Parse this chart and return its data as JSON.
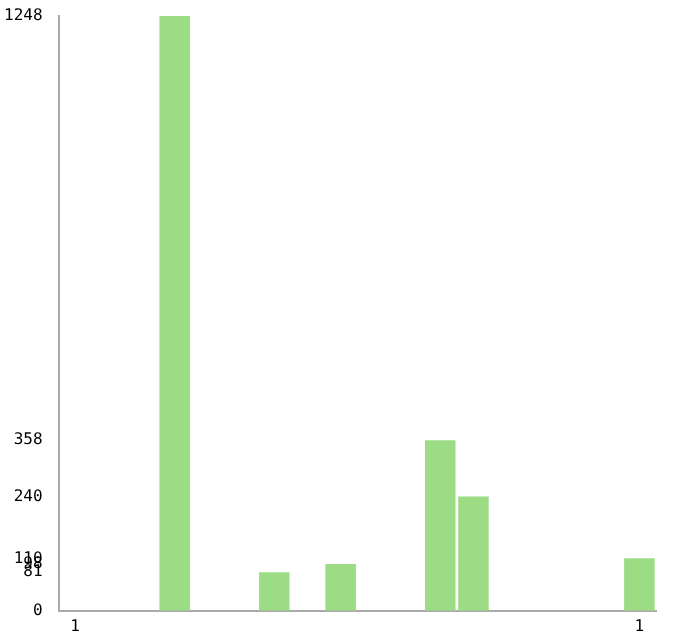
{
  "chart_data": {
    "type": "bar",
    "categories": [
      "1",
      null,
      null,
      null,
      null,
      null,
      null,
      null,
      null,
      null,
      null,
      null,
      null,
      null,
      null,
      null,
      null,
      "1"
    ],
    "values": [
      null,
      null,
      null,
      1248,
      null,
      null,
      81,
      null,
      98,
      null,
      null,
      358,
      240,
      null,
      null,
      null,
      null,
      110
    ],
    "color": "#9cdc85",
    "ylim": [
      0,
      1248
    ],
    "yticks": [
      0,
      81,
      98,
      110,
      240,
      358,
      1248
    ],
    "grid": false,
    "legend": false
  }
}
